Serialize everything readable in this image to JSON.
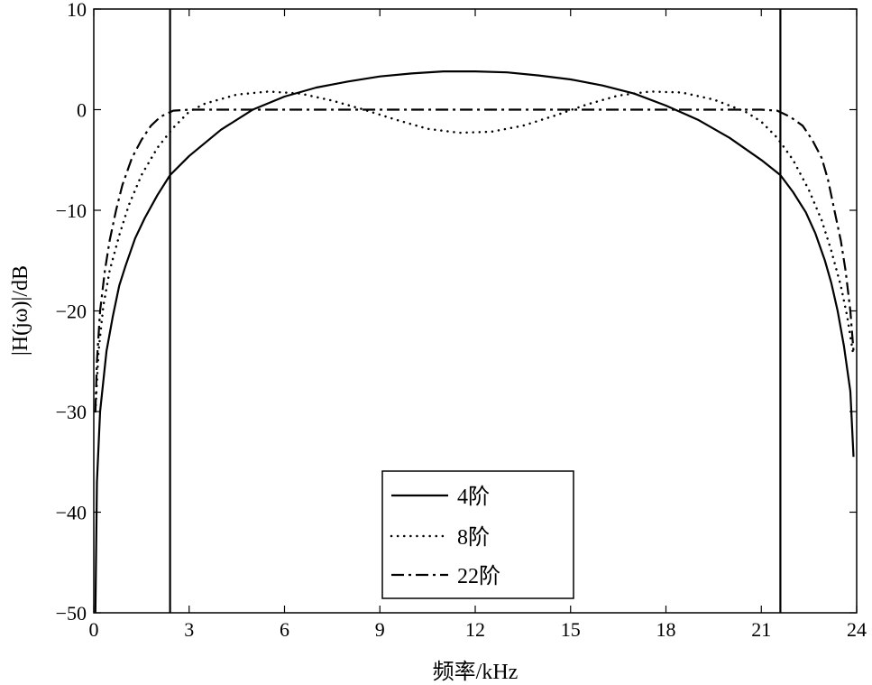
{
  "chart_data": {
    "type": "line",
    "title": "",
    "xlabel": "频率/kHz",
    "ylabel": "|H(jω)|/dB",
    "xlim": [
      0,
      24
    ],
    "ylim": [
      -50,
      10
    ],
    "xticks": [
      0,
      3,
      6,
      9,
      12,
      15,
      18,
      21,
      24
    ],
    "yticks": [
      -50,
      -40,
      -30,
      -20,
      -10,
      0,
      10
    ],
    "xtick_labels": [
      "0",
      "3",
      "6",
      "9",
      "12",
      "15",
      "18",
      "21",
      "24"
    ],
    "ytick_labels": [
      "−50",
      "−40",
      "−30",
      "−20",
      "−10",
      "0",
      "10"
    ],
    "grid": false,
    "legend_position": "bottom-center",
    "vertical_lines": [
      2.4,
      21.6
    ],
    "series": [
      {
        "name": "4阶",
        "style": "solid",
        "x": [
          0.05,
          0.1,
          0.2,
          0.4,
          0.6,
          0.8,
          1.0,
          1.3,
          1.6,
          2.0,
          2.4,
          3.0,
          4.0,
          5.0,
          6.0,
          7.0,
          8.0,
          9.0,
          10.0,
          11.0,
          12.0,
          13.0,
          14.0,
          15.0,
          16.0,
          17.0,
          18.0,
          19.0,
          20.0,
          21.0,
          21.6,
          22.0,
          22.4,
          22.7,
          23.0,
          23.2,
          23.4,
          23.6,
          23.8,
          23.9
        ],
        "y": [
          -50,
          -37,
          -30,
          -24,
          -20.5,
          -17.5,
          -15.5,
          -12.8,
          -10.8,
          -8.5,
          -6.5,
          -4.6,
          -2,
          0,
          1.3,
          2.2,
          2.8,
          3.3,
          3.6,
          3.8,
          3.8,
          3.7,
          3.4,
          3,
          2.4,
          1.6,
          0.4,
          -1,
          -2.8,
          -5,
          -6.5,
          -8.2,
          -10.2,
          -12.3,
          -15,
          -17.2,
          -20,
          -23.5,
          -28,
          -34.5
        ]
      },
      {
        "name": "8阶",
        "style": "dotted",
        "x": [
          0.05,
          0.15,
          0.3,
          0.5,
          0.8,
          1.1,
          1.5,
          2.0,
          2.5,
          3.0,
          3.5,
          4.5,
          5.5,
          6.5,
          7.5,
          8.5,
          9.5,
          10.5,
          11.5,
          12.5,
          13.5,
          14.5,
          15.5,
          16.5,
          17.5,
          18.5,
          19.5,
          20.5,
          21.0,
          21.5,
          22.0,
          22.5,
          22.9,
          23.2,
          23.5,
          23.7,
          23.9
        ],
        "y": [
          -30,
          -24,
          -19.5,
          -16,
          -12.5,
          -9.5,
          -6.5,
          -3.8,
          -1.8,
          -0.2,
          0.6,
          1.5,
          1.8,
          1.6,
          0.9,
          0,
          -1,
          -1.9,
          -2.3,
          -2.2,
          -1.6,
          -0.6,
          0.5,
          1.4,
          1.8,
          1.7,
          1,
          -0.2,
          -1.2,
          -2.8,
          -5,
          -8,
          -11,
          -14,
          -17.5,
          -20.5,
          -24.5
        ]
      },
      {
        "name": "22阶",
        "style": "dashdot",
        "x": [
          0.05,
          0.1,
          0.2,
          0.35,
          0.5,
          0.7,
          0.9,
          1.2,
          1.5,
          1.8,
          2.1,
          2.5,
          3.0,
          4.0,
          6.0,
          9.0,
          12.0,
          15.0,
          18.0,
          20.0,
          21.0,
          21.5,
          21.9,
          22.3,
          22.6,
          22.9,
          23.1,
          23.3,
          23.5,
          23.65,
          23.8,
          23.9
        ],
        "y": [
          -30,
          -25,
          -20,
          -16,
          -13,
          -10,
          -7.5,
          -4.8,
          -3,
          -1.6,
          -0.7,
          -0.1,
          0,
          0,
          0,
          0,
          0,
          0,
          0,
          0,
          0,
          -0.1,
          -0.7,
          -1.6,
          -3,
          -4.8,
          -7,
          -10,
          -13,
          -16,
          -20,
          -24
        ]
      }
    ]
  }
}
